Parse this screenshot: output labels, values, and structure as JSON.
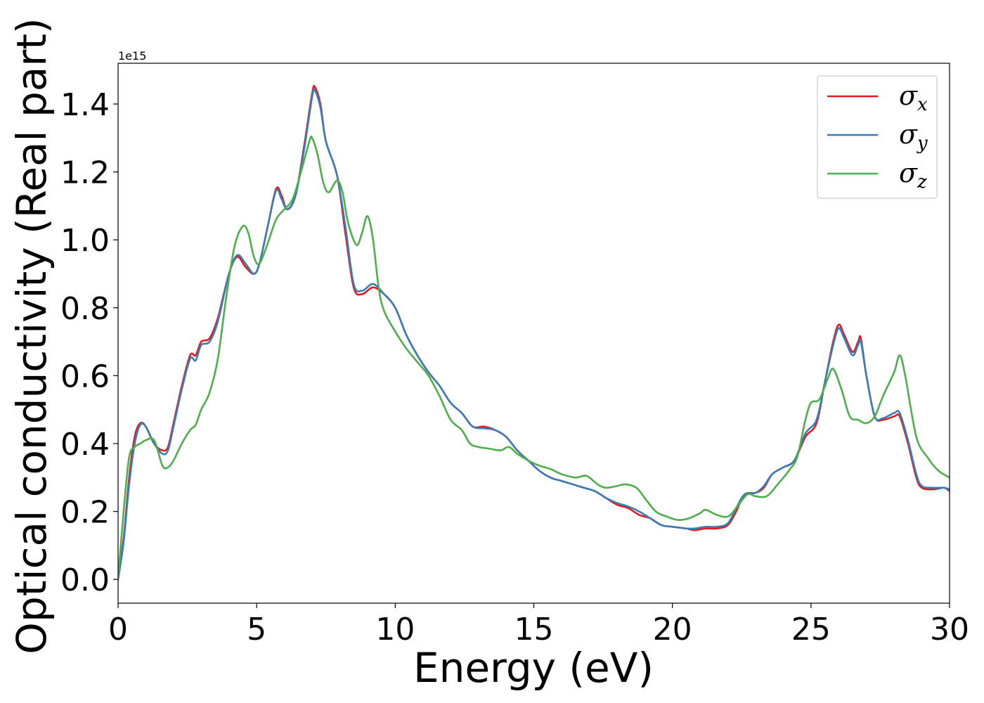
{
  "chart_data": {
    "type": "line",
    "xlabel": "Energy (eV)",
    "ylabel": "Optical conductivity (Real part)",
    "y_offset_label": "1e15",
    "y_scale_factor": 1000000000000000.0,
    "xlim": [
      0,
      30
    ],
    "ylim": [
      -0.07,
      1.52
    ],
    "xticks": [
      0,
      5,
      10,
      15,
      20,
      25,
      30
    ],
    "xtick_labels": [
      "0",
      "5",
      "10",
      "15",
      "20",
      "25",
      "30"
    ],
    "yticks": [
      0.0,
      0.2,
      0.4,
      0.6,
      0.8,
      1.0,
      1.2,
      1.4
    ],
    "ytick_labels": [
      "0.0",
      "0.2",
      "0.4",
      "0.6",
      "0.8",
      "1.0",
      "1.2",
      "1.4"
    ],
    "grid": false,
    "legend_position": "top-right",
    "series": [
      {
        "name": "σx",
        "symbol": "σ",
        "subscript": "x",
        "color": "#e41a1c",
        "points": [
          [
            0,
            0.0
          ],
          [
            0.2,
            0.12
          ],
          [
            0.4,
            0.3
          ],
          [
            0.6,
            0.42
          ],
          [
            0.8,
            0.46
          ],
          [
            1.0,
            0.45
          ],
          [
            1.3,
            0.4
          ],
          [
            1.6,
            0.38
          ],
          [
            1.8,
            0.39
          ],
          [
            2.0,
            0.46
          ],
          [
            2.3,
            0.57
          ],
          [
            2.6,
            0.66
          ],
          [
            2.8,
            0.66
          ],
          [
            3.0,
            0.7
          ],
          [
            3.3,
            0.71
          ],
          [
            3.6,
            0.77
          ],
          [
            4.0,
            0.9
          ],
          [
            4.3,
            0.95
          ],
          [
            4.6,
            0.92
          ],
          [
            4.9,
            0.9
          ],
          [
            5.1,
            0.93
          ],
          [
            5.4,
            1.04
          ],
          [
            5.7,
            1.15
          ],
          [
            5.9,
            1.13
          ],
          [
            6.1,
            1.09
          ],
          [
            6.4,
            1.13
          ],
          [
            6.7,
            1.27
          ],
          [
            7.0,
            1.43
          ],
          [
            7.1,
            1.45
          ],
          [
            7.3,
            1.4
          ],
          [
            7.5,
            1.29
          ],
          [
            7.9,
            1.19
          ],
          [
            8.2,
            1.02
          ],
          [
            8.5,
            0.86
          ],
          [
            8.8,
            0.84
          ],
          [
            9.2,
            0.86
          ],
          [
            9.6,
            0.84
          ],
          [
            10.0,
            0.8
          ],
          [
            10.4,
            0.72
          ],
          [
            10.8,
            0.66
          ],
          [
            11.2,
            0.61
          ],
          [
            11.6,
            0.57
          ],
          [
            12.0,
            0.52
          ],
          [
            12.4,
            0.49
          ],
          [
            12.8,
            0.45
          ],
          [
            13.2,
            0.45
          ],
          [
            13.6,
            0.44
          ],
          [
            14.0,
            0.42
          ],
          [
            14.4,
            0.38
          ],
          [
            14.8,
            0.35
          ],
          [
            15.2,
            0.32
          ],
          [
            15.6,
            0.3
          ],
          [
            16.0,
            0.29
          ],
          [
            16.4,
            0.28
          ],
          [
            16.8,
            0.27
          ],
          [
            17.2,
            0.26
          ],
          [
            17.6,
            0.24
          ],
          [
            18.0,
            0.22
          ],
          [
            18.4,
            0.21
          ],
          [
            18.8,
            0.19
          ],
          [
            19.2,
            0.18
          ],
          [
            19.6,
            0.16
          ],
          [
            20.0,
            0.155
          ],
          [
            20.5,
            0.15
          ],
          [
            20.8,
            0.145
          ],
          [
            21.2,
            0.15
          ],
          [
            21.6,
            0.15
          ],
          [
            22.0,
            0.16
          ],
          [
            22.3,
            0.2
          ],
          [
            22.6,
            0.25
          ],
          [
            23.0,
            0.255
          ],
          [
            23.3,
            0.27
          ],
          [
            23.6,
            0.31
          ],
          [
            24.0,
            0.33
          ],
          [
            24.4,
            0.35
          ],
          [
            24.8,
            0.42
          ],
          [
            25.2,
            0.46
          ],
          [
            25.5,
            0.58
          ],
          [
            25.8,
            0.7
          ],
          [
            26.0,
            0.75
          ],
          [
            26.2,
            0.72
          ],
          [
            26.5,
            0.67
          ],
          [
            26.7,
            0.7
          ],
          [
            26.8,
            0.71
          ],
          [
            27.0,
            0.6
          ],
          [
            27.3,
            0.48
          ],
          [
            27.6,
            0.47
          ],
          [
            28.0,
            0.48
          ],
          [
            28.2,
            0.48
          ],
          [
            28.5,
            0.4
          ],
          [
            28.8,
            0.3
          ],
          [
            29.0,
            0.27
          ],
          [
            29.4,
            0.265
          ],
          [
            29.8,
            0.27
          ],
          [
            30.0,
            0.26
          ]
        ]
      },
      {
        "name": "σy",
        "symbol": "σ",
        "subscript": "y",
        "color": "#377eb8",
        "points": [
          [
            0,
            0.0
          ],
          [
            0.2,
            0.11
          ],
          [
            0.4,
            0.28
          ],
          [
            0.6,
            0.4
          ],
          [
            0.8,
            0.455
          ],
          [
            1.0,
            0.45
          ],
          [
            1.3,
            0.4
          ],
          [
            1.6,
            0.37
          ],
          [
            1.8,
            0.38
          ],
          [
            2.0,
            0.45
          ],
          [
            2.3,
            0.56
          ],
          [
            2.6,
            0.65
          ],
          [
            2.8,
            0.645
          ],
          [
            3.0,
            0.69
          ],
          [
            3.3,
            0.7
          ],
          [
            3.6,
            0.76
          ],
          [
            4.0,
            0.9
          ],
          [
            4.3,
            0.955
          ],
          [
            4.6,
            0.93
          ],
          [
            4.9,
            0.9
          ],
          [
            5.1,
            0.93
          ],
          [
            5.4,
            1.04
          ],
          [
            5.7,
            1.145
          ],
          [
            5.9,
            1.12
          ],
          [
            6.1,
            1.09
          ],
          [
            6.4,
            1.13
          ],
          [
            6.7,
            1.26
          ],
          [
            7.0,
            1.42
          ],
          [
            7.1,
            1.44
          ],
          [
            7.3,
            1.39
          ],
          [
            7.5,
            1.29
          ],
          [
            7.9,
            1.19
          ],
          [
            8.2,
            1.04
          ],
          [
            8.5,
            0.87
          ],
          [
            8.8,
            0.85
          ],
          [
            9.2,
            0.87
          ],
          [
            9.6,
            0.84
          ],
          [
            10.0,
            0.8
          ],
          [
            10.4,
            0.72
          ],
          [
            10.8,
            0.66
          ],
          [
            11.2,
            0.61
          ],
          [
            11.6,
            0.57
          ],
          [
            12.0,
            0.52
          ],
          [
            12.4,
            0.49
          ],
          [
            12.8,
            0.45
          ],
          [
            13.2,
            0.445
          ],
          [
            13.6,
            0.44
          ],
          [
            14.0,
            0.42
          ],
          [
            14.4,
            0.38
          ],
          [
            14.8,
            0.35
          ],
          [
            15.2,
            0.32
          ],
          [
            15.6,
            0.3
          ],
          [
            16.0,
            0.29
          ],
          [
            16.4,
            0.28
          ],
          [
            16.8,
            0.27
          ],
          [
            17.2,
            0.26
          ],
          [
            17.6,
            0.24
          ],
          [
            18.0,
            0.225
          ],
          [
            18.4,
            0.215
          ],
          [
            18.8,
            0.2
          ],
          [
            19.2,
            0.18
          ],
          [
            19.6,
            0.16
          ],
          [
            20.0,
            0.155
          ],
          [
            20.5,
            0.15
          ],
          [
            20.8,
            0.15
          ],
          [
            21.2,
            0.155
          ],
          [
            21.6,
            0.155
          ],
          [
            22.0,
            0.165
          ],
          [
            22.3,
            0.21
          ],
          [
            22.6,
            0.25
          ],
          [
            23.0,
            0.255
          ],
          [
            23.3,
            0.275
          ],
          [
            23.6,
            0.31
          ],
          [
            24.0,
            0.33
          ],
          [
            24.4,
            0.35
          ],
          [
            24.8,
            0.43
          ],
          [
            25.2,
            0.47
          ],
          [
            25.5,
            0.58
          ],
          [
            25.8,
            0.69
          ],
          [
            26.0,
            0.74
          ],
          [
            26.2,
            0.71
          ],
          [
            26.5,
            0.66
          ],
          [
            26.7,
            0.69
          ],
          [
            26.8,
            0.7
          ],
          [
            27.0,
            0.6
          ],
          [
            27.3,
            0.48
          ],
          [
            27.6,
            0.475
          ],
          [
            28.0,
            0.49
          ],
          [
            28.2,
            0.49
          ],
          [
            28.5,
            0.41
          ],
          [
            28.8,
            0.31
          ],
          [
            29.0,
            0.275
          ],
          [
            29.4,
            0.27
          ],
          [
            29.8,
            0.27
          ],
          [
            30.0,
            0.265
          ]
        ]
      },
      {
        "name": "σz",
        "symbol": "σ",
        "subscript": "z",
        "color": "#4daf4a",
        "points": [
          [
            0,
            0.0
          ],
          [
            0.2,
            0.2
          ],
          [
            0.4,
            0.36
          ],
          [
            0.6,
            0.39
          ],
          [
            0.8,
            0.4
          ],
          [
            1.0,
            0.41
          ],
          [
            1.3,
            0.41
          ],
          [
            1.6,
            0.335
          ],
          [
            1.8,
            0.33
          ],
          [
            2.0,
            0.35
          ],
          [
            2.3,
            0.4
          ],
          [
            2.6,
            0.44
          ],
          [
            2.8,
            0.455
          ],
          [
            3.0,
            0.5
          ],
          [
            3.3,
            0.55
          ],
          [
            3.6,
            0.65
          ],
          [
            3.9,
            0.83
          ],
          [
            4.2,
            0.98
          ],
          [
            4.5,
            1.04
          ],
          [
            4.7,
            1.02
          ],
          [
            4.9,
            0.95
          ],
          [
            5.1,
            0.93
          ],
          [
            5.4,
            0.99
          ],
          [
            5.7,
            1.06
          ],
          [
            6.0,
            1.09
          ],
          [
            6.3,
            1.12
          ],
          [
            6.6,
            1.2
          ],
          [
            6.9,
            1.29
          ],
          [
            7.0,
            1.3
          ],
          [
            7.2,
            1.25
          ],
          [
            7.4,
            1.17
          ],
          [
            7.6,
            1.14
          ],
          [
            7.9,
            1.175
          ],
          [
            8.1,
            1.14
          ],
          [
            8.3,
            1.05
          ],
          [
            8.6,
            0.985
          ],
          [
            8.8,
            1.02
          ],
          [
            9.0,
            1.07
          ],
          [
            9.2,
            1.0
          ],
          [
            9.4,
            0.86
          ],
          [
            9.6,
            0.79
          ],
          [
            10.0,
            0.73
          ],
          [
            10.4,
            0.68
          ],
          [
            10.8,
            0.64
          ],
          [
            11.2,
            0.6
          ],
          [
            11.6,
            0.54
          ],
          [
            12.0,
            0.47
          ],
          [
            12.4,
            0.44
          ],
          [
            12.7,
            0.4
          ],
          [
            13.0,
            0.39
          ],
          [
            13.4,
            0.385
          ],
          [
            13.8,
            0.38
          ],
          [
            14.1,
            0.39
          ],
          [
            14.4,
            0.37
          ],
          [
            14.8,
            0.35
          ],
          [
            15.2,
            0.335
          ],
          [
            15.6,
            0.325
          ],
          [
            16.0,
            0.31
          ],
          [
            16.5,
            0.3
          ],
          [
            16.9,
            0.305
          ],
          [
            17.3,
            0.28
          ],
          [
            17.6,
            0.27
          ],
          [
            18.0,
            0.275
          ],
          [
            18.3,
            0.28
          ],
          [
            18.7,
            0.27
          ],
          [
            19.0,
            0.24
          ],
          [
            19.4,
            0.2
          ],
          [
            19.8,
            0.185
          ],
          [
            20.2,
            0.175
          ],
          [
            20.6,
            0.18
          ],
          [
            21.0,
            0.195
          ],
          [
            21.2,
            0.205
          ],
          [
            21.6,
            0.19
          ],
          [
            22.0,
            0.185
          ],
          [
            22.3,
            0.21
          ],
          [
            22.7,
            0.25
          ],
          [
            23.0,
            0.245
          ],
          [
            23.4,
            0.245
          ],
          [
            23.8,
            0.28
          ],
          [
            24.2,
            0.32
          ],
          [
            24.5,
            0.36
          ],
          [
            24.8,
            0.47
          ],
          [
            25.0,
            0.52
          ],
          [
            25.3,
            0.53
          ],
          [
            25.6,
            0.59
          ],
          [
            25.8,
            0.62
          ],
          [
            26.1,
            0.56
          ],
          [
            26.4,
            0.48
          ],
          [
            26.7,
            0.47
          ],
          [
            27.0,
            0.46
          ],
          [
            27.3,
            0.48
          ],
          [
            27.6,
            0.54
          ],
          [
            28.0,
            0.61
          ],
          [
            28.2,
            0.66
          ],
          [
            28.4,
            0.6
          ],
          [
            28.8,
            0.42
          ],
          [
            29.2,
            0.36
          ],
          [
            29.6,
            0.32
          ],
          [
            30.0,
            0.3
          ]
        ]
      }
    ]
  }
}
